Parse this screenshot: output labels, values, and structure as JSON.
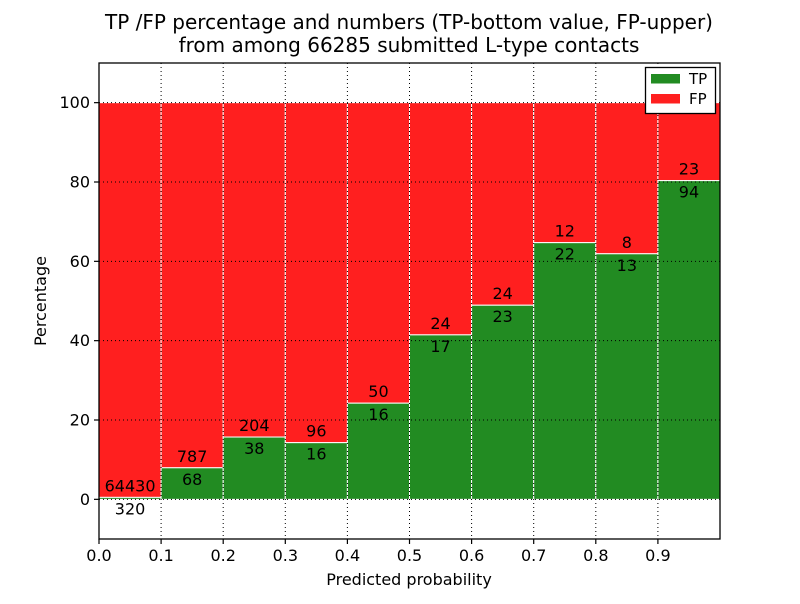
{
  "window": {
    "background": "#ffffff",
    "text_color": "#000000"
  },
  "title": {
    "line1": "TP /FP percentage and numbers (TP-bottom value, FP-upper)",
    "line2": "from among 66285 submitted L-type contacts"
  },
  "chart_data": {
    "type": "bar",
    "stacked": true,
    "title": "TP /FP percentage and numbers (TP-bottom value, FP-upper) from among 66285 submitted L-type contacts",
    "xlabel": "Predicted probability",
    "ylabel": "Percentage",
    "total_submitted": 66285,
    "contact_type": "L-type",
    "xlim": [
      0.0,
      1.0
    ],
    "ylim": [
      -10,
      110
    ],
    "grid": true,
    "grid_style": "dotted",
    "legend_position": "upper right",
    "bin_edges": [
      0.0,
      0.1,
      0.2,
      0.3,
      0.4,
      0.5,
      0.6,
      0.7,
      0.8,
      0.9,
      1.0
    ],
    "x_tick_values": [
      0.0,
      0.1,
      0.2,
      0.3,
      0.4,
      0.5,
      0.6,
      0.7,
      0.8,
      0.9
    ],
    "x_tick_labels": [
      "0.0",
      "0.1",
      "0.2",
      "0.3",
      "0.4",
      "0.5",
      "0.6",
      "0.7",
      "0.8",
      "0.9"
    ],
    "y_tick_values": [
      0,
      20,
      40,
      60,
      80,
      100
    ],
    "y_tick_labels": [
      "0",
      "20",
      "40",
      "60",
      "80",
      "100"
    ],
    "series": [
      {
        "name": "TP",
        "color": "#228b22",
        "counts": [
          320,
          68,
          38,
          16,
          16,
          17,
          23,
          22,
          13,
          94
        ]
      },
      {
        "name": "FP",
        "color": "#ff1f1f",
        "counts": [
          64430,
          787,
          204,
          96,
          50,
          24,
          24,
          12,
          8,
          23
        ]
      }
    ],
    "tp_percent_of_bin": [
      0.49,
      7.95,
      15.7,
      14.29,
      24.24,
      41.46,
      48.94,
      64.71,
      61.9,
      80.34
    ]
  },
  "legend": {
    "items": [
      {
        "label": "TP",
        "color": "#228b22"
      },
      {
        "label": "FP",
        "color": "#ff1f1f"
      }
    ]
  }
}
